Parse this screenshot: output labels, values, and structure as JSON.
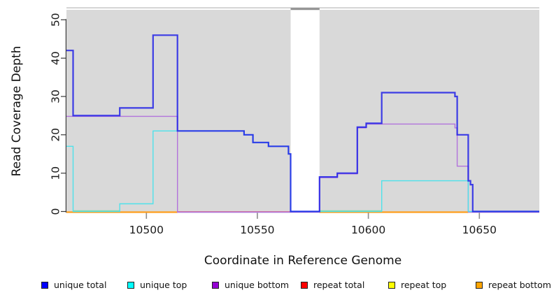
{
  "chart_data": {
    "type": "line",
    "subtype": "step-coverage-plot",
    "title": "",
    "xlabel": "Coordinate in Reference Genome",
    "ylabel": "Read Coverage Depth",
    "xlim": [
      10464,
      10677
    ],
    "ylim": [
      0,
      50
    ],
    "xticks": [
      10500,
      10550,
      10600,
      10650
    ],
    "yticks": [
      0,
      10,
      20,
      30,
      40,
      50
    ],
    "grid": false,
    "legend_position": "bottom",
    "background": {
      "panel_color": "#d9d9d9",
      "gap_x": [
        10565,
        10578
      ],
      "top_rule_color": "#c6c6c6",
      "gap_marker_color": "#8f8f8f"
    },
    "series": [
      {
        "name": "unique bottom",
        "color": "#b273dc",
        "legend_color": "#9400d3",
        "width": 1.4,
        "dy": 1,
        "points": [
          [
            10464,
            25
          ],
          [
            10514,
            0
          ],
          [
            10578,
            9
          ],
          [
            10586,
            10
          ],
          [
            10595,
            22
          ],
          [
            10599,
            23
          ],
          [
            10639,
            22
          ],
          [
            10640,
            12
          ],
          [
            10645,
            0
          ]
        ],
        "end": 10677
      },
      {
        "name": "unique top",
        "color": "#4ee2ea",
        "legend_color": "#00ffff",
        "width": 1.4,
        "dy": 0,
        "points": [
          [
            10464,
            17
          ],
          [
            10467,
            0
          ],
          [
            10488,
            2
          ],
          [
            10503,
            21
          ],
          [
            10514,
            21
          ],
          [
            10544,
            20
          ],
          [
            10548,
            18
          ],
          [
            10555,
            17
          ],
          [
            10564,
            15
          ],
          [
            10565,
            0
          ],
          [
            10606,
            8
          ],
          [
            10645,
            0
          ]
        ],
        "end": 10677
      },
      {
        "name": "unique total",
        "color": "#1a1ae8",
        "legend_color": "#0000ff",
        "width": 2.2,
        "opacity": 0.82,
        "dy": 0,
        "points": [
          [
            10464,
            42
          ],
          [
            10467,
            25
          ],
          [
            10488,
            27
          ],
          [
            10503,
            46
          ],
          [
            10514,
            21
          ],
          [
            10544,
            20
          ],
          [
            10548,
            18
          ],
          [
            10555,
            17
          ],
          [
            10564,
            15
          ],
          [
            10565,
            0
          ],
          [
            10578,
            9
          ],
          [
            10586,
            10
          ],
          [
            10595,
            22
          ],
          [
            10599,
            23
          ],
          [
            10606,
            31
          ],
          [
            10639,
            30
          ],
          [
            10640,
            20
          ],
          [
            10645,
            8
          ],
          [
            10646,
            7
          ],
          [
            10647,
            0
          ]
        ],
        "end": 10677
      }
    ],
    "zero_line_segments": [
      {
        "name": "repeat bottom",
        "color": "#ff9e1c",
        "x": [
          10464,
          10514
        ],
        "width": 2.2,
        "dy": 1
      },
      {
        "name": "repeat top over unique top",
        "color": "#97d6a3",
        "x": [
          10467,
          10488
        ],
        "width": 1.5,
        "dy": -1
      },
      {
        "name": "repeat total",
        "color": "#d9506e",
        "x": [
          10514,
          10565
        ],
        "width": 1.6,
        "dy": 0.5
      },
      {
        "name": "repeat bottom",
        "color": "#ff9e1c",
        "x": [
          10578,
          10645
        ],
        "width": 2.2,
        "dy": 1
      },
      {
        "name": "repeat top over unique top",
        "color": "#97d6a3",
        "x": [
          10578,
          10606
        ],
        "width": 1.5,
        "dy": -1
      }
    ],
    "legend": [
      {
        "label": "unique total",
        "color": "#0000ff"
      },
      {
        "label": "unique top",
        "color": "#00ffff"
      },
      {
        "label": "unique bottom",
        "color": "#9400d3"
      },
      {
        "label": "repeat total",
        "color": "#ff0000"
      },
      {
        "label": "repeat top",
        "color": "#ffff00"
      },
      {
        "label": "repeat bottom",
        "color": "#ffa500"
      }
    ]
  }
}
